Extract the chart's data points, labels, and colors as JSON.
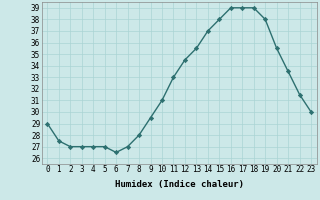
{
  "x": [
    0,
    1,
    2,
    3,
    4,
    5,
    6,
    7,
    8,
    9,
    10,
    11,
    12,
    13,
    14,
    15,
    16,
    17,
    18,
    19,
    20,
    21,
    22,
    23
  ],
  "y": [
    29,
    27.5,
    27,
    27,
    27,
    27,
    26.5,
    27,
    28,
    29.5,
    31,
    33,
    34.5,
    35.5,
    37,
    38,
    39,
    39,
    39,
    38,
    35.5,
    33.5,
    31.5,
    30
  ],
  "line_color": "#2d7070",
  "marker": "D",
  "marker_size": 2.2,
  "bg_color": "#cce8e8",
  "grid_color": "#aad4d4",
  "xlabel": "Humidex (Indice chaleur)",
  "xlim": [
    -0.5,
    23.5
  ],
  "ylim": [
    25.5,
    39.5
  ],
  "yticks": [
    26,
    27,
    28,
    29,
    30,
    31,
    32,
    33,
    34,
    35,
    36,
    37,
    38,
    39
  ],
  "xticks": [
    0,
    1,
    2,
    3,
    4,
    5,
    6,
    7,
    8,
    9,
    10,
    11,
    12,
    13,
    14,
    15,
    16,
    17,
    18,
    19,
    20,
    21,
    22,
    23
  ],
  "xlabel_fontsize": 6.5,
  "tick_fontsize": 5.5,
  "linewidth": 1.0
}
